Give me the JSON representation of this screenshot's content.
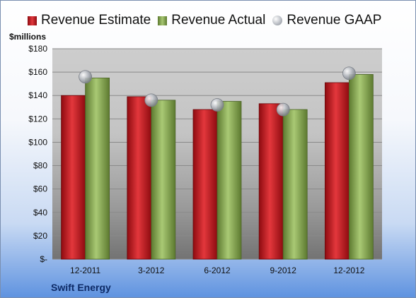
{
  "legend": {
    "estimate": "Revenue Estimate",
    "actual": "Revenue Actual",
    "gaap": "Revenue GAAP"
  },
  "unit_label": "$millions",
  "company": "Swift Energy",
  "colors": {
    "estimate": "#c8161d",
    "actual": "#8aac52",
    "gaap": "#b9bdc4"
  },
  "chart_data": {
    "type": "bar",
    "categories": [
      "12-2011",
      "3-2012",
      "6-2012",
      "9-2012",
      "12-2012"
    ],
    "series": [
      {
        "name": "Revenue Estimate",
        "values": [
          140,
          139,
          128,
          133,
          151
        ]
      },
      {
        "name": "Revenue Actual",
        "values": [
          155,
          136,
          135,
          128,
          158
        ]
      },
      {
        "name": "Revenue GAAP",
        "values": [
          156,
          136,
          132,
          128,
          159
        ]
      }
    ],
    "ylabel": "$millions",
    "ylim": [
      0,
      180
    ],
    "yticks": [
      "$-",
      "$20",
      "$40",
      "$60",
      "$80",
      "$100",
      "$120",
      "$140",
      "$160",
      "$180"
    ],
    "grid": true,
    "legend_position": "top"
  }
}
